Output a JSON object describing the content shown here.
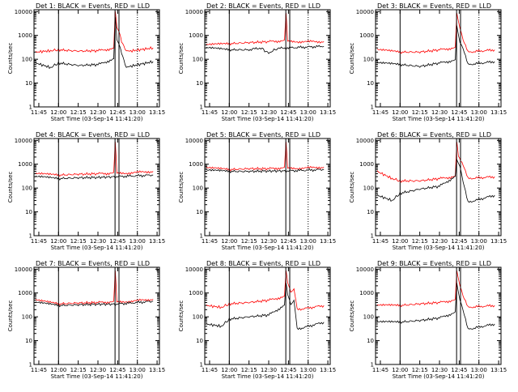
{
  "chart_data": [
    {
      "type": "line",
      "title": "Det 1: BLACK = Events, RED = LLD",
      "xlabel": "Start Time (03-Sep-14 11:41:20)",
      "ylabel": "Counts/sec",
      "xticks": [
        "11:45",
        "12:00",
        "12:15",
        "12:30",
        "12:45",
        "13:00",
        "13:15"
      ],
      "yticks": [
        "1",
        "10",
        "100",
        "1000",
        "10000"
      ],
      "ylim": [
        1,
        12000
      ],
      "scale": "log",
      "solid_markers": [
        "12:00",
        "12:43",
        "12:46"
      ],
      "dotted_markers": [
        "13:00"
      ],
      "series": [
        {
          "color": "#ff0000",
          "values": [
            [
              11.71,
              200
            ],
            [
              11.9,
              230
            ],
            [
              12.0,
              250
            ],
            [
              12.25,
              220
            ],
            [
              12.5,
              230
            ],
            [
              12.7,
              280
            ],
            [
              12.72,
              12000
            ],
            [
              12.74,
              2000
            ],
            [
              12.78,
              1000
            ],
            [
              12.8,
              600
            ],
            [
              12.86,
              200
            ],
            [
              12.9,
              220
            ],
            [
              13.2,
              300
            ]
          ]
        },
        {
          "color": "#000000",
          "values": [
            [
              11.71,
              70
            ],
            [
              11.9,
              45
            ],
            [
              12.0,
              70
            ],
            [
              12.25,
              55
            ],
            [
              12.5,
              60
            ],
            [
              12.7,
              100
            ],
            [
              12.72,
              7000
            ],
            [
              12.74,
              600
            ],
            [
              12.78,
              300
            ],
            [
              12.8,
              200
            ],
            [
              12.86,
              40
            ],
            [
              12.9,
              50
            ],
            [
              13.2,
              80
            ]
          ]
        }
      ]
    },
    {
      "type": "line",
      "title": "Det 2: BLACK = Events, RED = LLD",
      "xlabel": "Start Time (03-Sep-14 11:41:20)",
      "ylabel": "Counts/sec",
      "xticks": [
        "11:45",
        "12:00",
        "12:15",
        "12:30",
        "12:45",
        "13:00",
        "13:15"
      ],
      "yticks": [
        "1",
        "10",
        "100",
        "1000",
        "10000"
      ],
      "ylim": [
        1,
        12000
      ],
      "scale": "log",
      "solid_markers": [
        "12:00",
        "12:43",
        "12:46"
      ],
      "dotted_markers": [
        "13:00"
      ],
      "series": [
        {
          "color": "#ff0000",
          "values": [
            [
              11.71,
              400
            ],
            [
              12.0,
              450
            ],
            [
              12.25,
              500
            ],
            [
              12.5,
              550
            ],
            [
              12.7,
              600
            ],
            [
              12.72,
              10000
            ],
            [
              12.74,
              550
            ],
            [
              13.2,
              550
            ]
          ]
        },
        {
          "color": "#000000",
          "values": [
            [
              11.71,
              300
            ],
            [
              12.0,
              250
            ],
            [
              12.25,
              250
            ],
            [
              12.4,
              300
            ],
            [
              12.5,
              180
            ],
            [
              12.6,
              280
            ],
            [
              12.72,
              300
            ],
            [
              13.2,
              350
            ]
          ]
        }
      ]
    },
    {
      "type": "line",
      "title": "Det 3: BLACK = Events, RED = LLD",
      "xlabel": "Start Time (03-Sep-14 11:41:20)",
      "ylabel": "Counts/sec",
      "xticks": [
        "11:45",
        "12:00",
        "12:15",
        "12:30",
        "12:45",
        "13:00",
        "13:15"
      ],
      "yticks": [
        "1",
        "10",
        "100",
        "1000",
        "10000"
      ],
      "ylim": [
        1,
        12000
      ],
      "scale": "log",
      "solid_markers": [
        "12:00",
        "12:43",
        "12:46"
      ],
      "dotted_markers": [
        "13:00"
      ],
      "series": [
        {
          "color": "#ff0000",
          "values": [
            [
              11.71,
              250
            ],
            [
              12.0,
              200
            ],
            [
              12.25,
              200
            ],
            [
              12.5,
              250
            ],
            [
              12.7,
              300
            ],
            [
              12.72,
              10000
            ],
            [
              12.76,
              2000
            ],
            [
              12.8,
              700
            ],
            [
              12.86,
              200
            ],
            [
              13.2,
              250
            ]
          ]
        },
        {
          "color": "#000000",
          "values": [
            [
              11.71,
              70
            ],
            [
              12.0,
              60
            ],
            [
              12.25,
              50
            ],
            [
              12.5,
              70
            ],
            [
              12.7,
              90
            ],
            [
              12.72,
              3000
            ],
            [
              12.76,
              500
            ],
            [
              12.8,
              300
            ],
            [
              12.86,
              60
            ],
            [
              13.2,
              80
            ]
          ]
        }
      ]
    },
    {
      "type": "line",
      "title": "Det 4: BLACK = Events, RED = LLD",
      "xlabel": "Start Time (03-Sep-14 11:41:20)",
      "ylabel": "Counts/sec",
      "xticks": [
        "11:45",
        "12:00",
        "12:15",
        "12:30",
        "12:45",
        "13:00",
        "13:15"
      ],
      "yticks": [
        "1",
        "10",
        "100",
        "1000",
        "10000"
      ],
      "ylim": [
        1,
        12000
      ],
      "scale": "log",
      "solid_markers": [
        "12:00",
        "12:43",
        "12:46"
      ],
      "dotted_markers": [
        "13:00"
      ],
      "series": [
        {
          "color": "#ff0000",
          "values": [
            [
              11.71,
              400
            ],
            [
              12.0,
              350
            ],
            [
              12.25,
              380
            ],
            [
              12.5,
              400
            ],
            [
              12.7,
              420
            ],
            [
              12.72,
              10000
            ],
            [
              12.74,
              400
            ],
            [
              13.2,
              500
            ]
          ]
        },
        {
          "color": "#000000",
          "values": [
            [
              11.71,
              300
            ],
            [
              12.0,
              250
            ],
            [
              12.25,
              270
            ],
            [
              12.5,
              280
            ],
            [
              12.72,
              300
            ],
            [
              13.2,
              350
            ]
          ]
        }
      ]
    },
    {
      "type": "line",
      "title": "Det 5: BLACK = Events, RED = LLD",
      "xlabel": "Start Time (03-Sep-14 11:41:20)",
      "ylabel": "Counts/sec",
      "xticks": [
        "11:45",
        "12:00",
        "12:15",
        "12:30",
        "12:45",
        "13:00",
        "13:15"
      ],
      "yticks": [
        "1",
        "10",
        "100",
        "1000",
        "10000"
      ],
      "ylim": [
        1,
        12000
      ],
      "scale": "log",
      "solid_markers": [
        "12:00",
        "12:43",
        "12:46"
      ],
      "dotted_markers": [
        "13:00"
      ],
      "series": [
        {
          "color": "#ff0000",
          "values": [
            [
              11.71,
              700
            ],
            [
              12.0,
              600
            ],
            [
              12.25,
              650
            ],
            [
              12.5,
              650
            ],
            [
              12.7,
              700
            ],
            [
              12.72,
              10000
            ],
            [
              12.74,
              650
            ],
            [
              13.2,
              750
            ]
          ]
        },
        {
          "color": "#000000",
          "values": [
            [
              11.71,
              550
            ],
            [
              12.0,
              500
            ],
            [
              12.25,
              500
            ],
            [
              12.5,
              520
            ],
            [
              12.72,
              520
            ],
            [
              13.2,
              600
            ]
          ]
        }
      ]
    },
    {
      "type": "line",
      "title": "Det 6: BLACK = Events, RED = LLD",
      "xlabel": "Start Time (03-Sep-14 11:41:20)",
      "ylabel": "Counts/sec",
      "xticks": [
        "11:45",
        "12:00",
        "12:15",
        "12:30",
        "12:45",
        "13:00",
        "13:15"
      ],
      "yticks": [
        "1",
        "10",
        "100",
        "1000",
        "10000"
      ],
      "ylim": [
        1,
        12000
      ],
      "scale": "log",
      "solid_markers": [
        "12:00",
        "12:43",
        "12:46"
      ],
      "dotted_markers": [
        "13:00"
      ],
      "series": [
        {
          "color": "#ff0000",
          "values": [
            [
              11.71,
              500
            ],
            [
              11.9,
              250
            ],
            [
              12.0,
              200
            ],
            [
              12.25,
              200
            ],
            [
              12.5,
              250
            ],
            [
              12.7,
              300
            ],
            [
              12.72,
              10000
            ],
            [
              12.74,
              2000
            ],
            [
              12.8,
              1000
            ],
            [
              12.86,
              250
            ],
            [
              13.2,
              300
            ]
          ]
        },
        {
          "color": "#000000",
          "values": [
            [
              11.71,
              50
            ],
            [
              11.9,
              30
            ],
            [
              12.0,
              60
            ],
            [
              12.25,
              90
            ],
            [
              12.5,
              120
            ],
            [
              12.7,
              300
            ],
            [
              12.72,
              1800
            ],
            [
              12.76,
              800
            ],
            [
              12.8,
              200
            ],
            [
              12.86,
              25
            ],
            [
              13.2,
              50
            ]
          ]
        }
      ]
    },
    {
      "type": "line",
      "title": "Det 7: BLACK = Events, RED = LLD",
      "xlabel": "Start Time (03-Sep-14 11:41:20)",
      "ylabel": "Counts/sec",
      "xticks": [
        "11:45",
        "12:00",
        "12:15",
        "12:30",
        "12:45",
        "13:00",
        "13:15"
      ],
      "yticks": [
        "1",
        "10",
        "100",
        "1000",
        "10000"
      ],
      "ylim": [
        1,
        12000
      ],
      "scale": "log",
      "solid_markers": [
        "12:00",
        "12:43",
        "12:46"
      ],
      "dotted_markers": [
        "13:00"
      ],
      "series": [
        {
          "color": "#ff0000",
          "values": [
            [
              11.71,
              500
            ],
            [
              12.0,
              350
            ],
            [
              12.25,
              380
            ],
            [
              12.5,
              400
            ],
            [
              12.7,
              420
            ],
            [
              12.72,
              10000
            ],
            [
              12.74,
              400
            ],
            [
              13.2,
              550
            ]
          ]
        },
        {
          "color": "#000000",
          "values": [
            [
              11.71,
              400
            ],
            [
              12.0,
              300
            ],
            [
              12.25,
              320
            ],
            [
              12.5,
              340
            ],
            [
              12.72,
              340
            ],
            [
              13.2,
              450
            ]
          ]
        }
      ]
    },
    {
      "type": "line",
      "title": "Det 8: BLACK = Events, RED = LLD",
      "xlabel": "Start Time (03-Sep-14 11:41:20)",
      "ylabel": "Counts/sec",
      "xticks": [
        "11:45",
        "12:00",
        "12:15",
        "12:30",
        "12:45",
        "13:00",
        "13:15"
      ],
      "yticks": [
        "1",
        "10",
        "100",
        "1000",
        "10000"
      ],
      "ylim": [
        1,
        12000
      ],
      "scale": "log",
      "solid_markers": [
        "12:00",
        "12:43",
        "12:46"
      ],
      "dotted_markers": [
        "13:00"
      ],
      "series": [
        {
          "color": "#ff0000",
          "values": [
            [
              11.71,
              300
            ],
            [
              11.9,
              250
            ],
            [
              12.0,
              350
            ],
            [
              12.25,
              400
            ],
            [
              12.5,
              500
            ],
            [
              12.7,
              700
            ],
            [
              12.72,
              10000
            ],
            [
              12.74,
              2500
            ],
            [
              12.78,
              1000
            ],
            [
              12.82,
              1500
            ],
            [
              12.86,
              200
            ],
            [
              13.2,
              300
            ]
          ]
        },
        {
          "color": "#000000",
          "values": [
            [
              11.71,
              50
            ],
            [
              11.9,
              40
            ],
            [
              12.0,
              80
            ],
            [
              12.25,
              100
            ],
            [
              12.5,
              120
            ],
            [
              12.7,
              300
            ],
            [
              12.72,
              3000
            ],
            [
              12.74,
              800
            ],
            [
              12.78,
              300
            ],
            [
              12.82,
              500
            ],
            [
              12.86,
              30
            ],
            [
              13.2,
              60
            ]
          ]
        }
      ]
    },
    {
      "type": "line",
      "title": "Det 9: BLACK = Events, RED = LLD",
      "xlabel": "Start Time (03-Sep-14 11:41:20)",
      "ylabel": "Counts/sec",
      "xticks": [
        "11:45",
        "12:00",
        "12:15",
        "12:30",
        "12:45",
        "13:00",
        "13:15"
      ],
      "yticks": [
        "1",
        "10",
        "100",
        "1000",
        "10000"
      ],
      "ylim": [
        1,
        12000
      ],
      "scale": "log",
      "solid_markers": [
        "12:00",
        "12:43",
        "12:46"
      ],
      "dotted_markers": [
        "13:00"
      ],
      "series": [
        {
          "color": "#ff0000",
          "values": [
            [
              11.71,
              300
            ],
            [
              12.0,
              300
            ],
            [
              12.25,
              350
            ],
            [
              12.5,
              400
            ],
            [
              12.7,
              500
            ],
            [
              12.72,
              10000
            ],
            [
              12.76,
              2000
            ],
            [
              12.8,
              800
            ],
            [
              12.86,
              250
            ],
            [
              13.2,
              300
            ]
          ]
        },
        {
          "color": "#000000",
          "values": [
            [
              11.71,
              60
            ],
            [
              12.0,
              60
            ],
            [
              12.25,
              70
            ],
            [
              12.5,
              90
            ],
            [
              12.7,
              150
            ],
            [
              12.72,
              3000
            ],
            [
              12.76,
              500
            ],
            [
              12.8,
              200
            ],
            [
              12.86,
              30
            ],
            [
              13.2,
              50
            ]
          ]
        }
      ]
    }
  ]
}
